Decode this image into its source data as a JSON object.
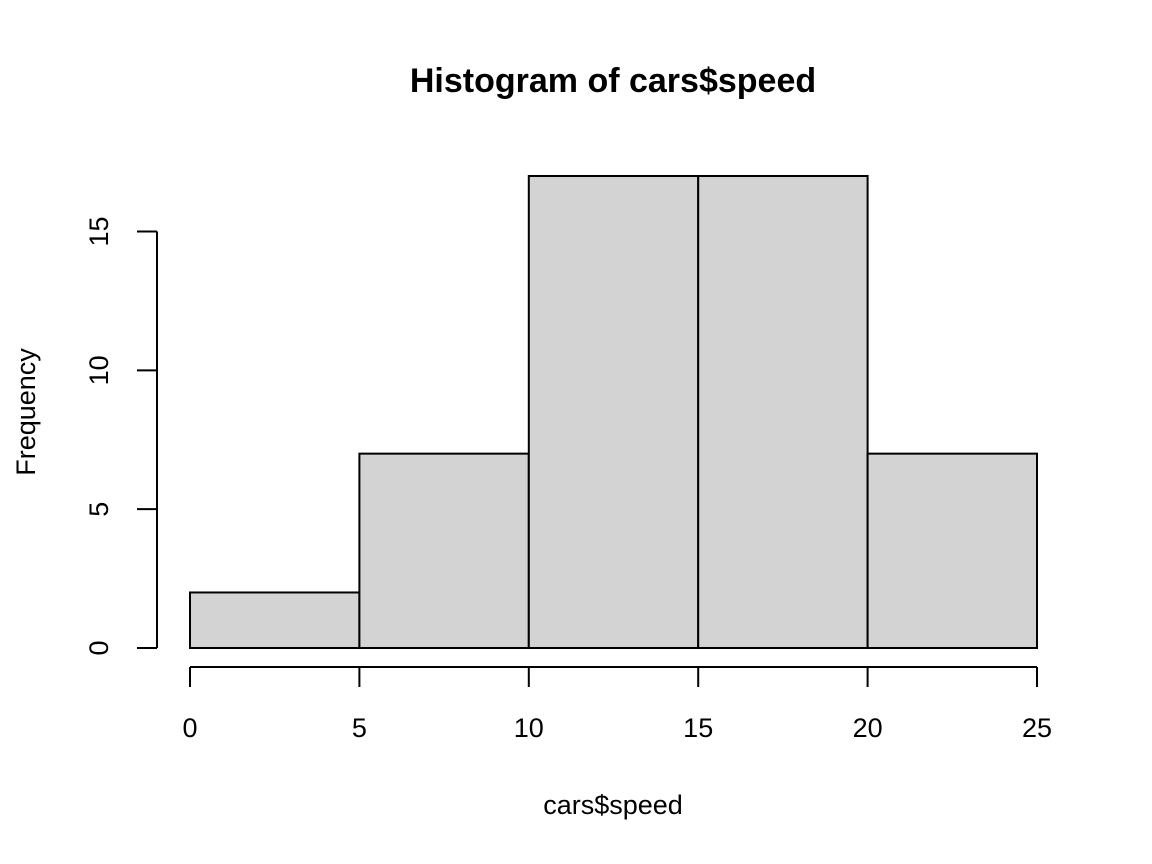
{
  "chart_data": {
    "type": "bar",
    "title": "Histogram of cars$speed",
    "xlabel": "cars$speed",
    "ylabel": "Frequency",
    "bins": [
      {
        "from": 0,
        "to": 5,
        "count": 2
      },
      {
        "from": 5,
        "to": 10,
        "count": 7
      },
      {
        "from": 10,
        "to": 15,
        "count": 17
      },
      {
        "from": 15,
        "to": 20,
        "count": 17
      },
      {
        "from": 20,
        "to": 25,
        "count": 7
      }
    ],
    "xlim": [
      0,
      25
    ],
    "ylim": [
      0,
      17
    ],
    "xticks": [
      0,
      5,
      10,
      15,
      20,
      25
    ],
    "yticks": [
      0,
      5,
      10,
      15
    ],
    "xtick_labels": [
      "0",
      "5",
      "10",
      "15",
      "20",
      "25"
    ],
    "ytick_labels": [
      "0",
      "5",
      "10",
      "15"
    ],
    "grid": false,
    "bar_color": "#d3d3d3",
    "edge_color": "#000000"
  }
}
